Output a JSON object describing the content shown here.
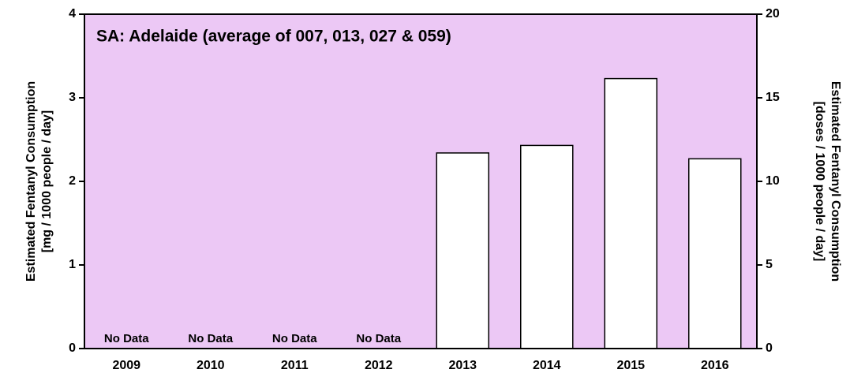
{
  "chart_data": {
    "type": "bar",
    "title": "SA: Adelaide (average of 007, 013, 027 & 059)",
    "y_label": [
      "Estimated Fentanyl Consumption",
      "[mg / 1000 people / day]"
    ],
    "y2_label": [
      "Estimated Fentanyl Consumption",
      "[doses / 1000 people / day]"
    ],
    "categories": [
      "2009",
      "2010",
      "2011",
      "2012",
      "2013",
      "2014",
      "2015",
      "2016"
    ],
    "values": [
      null,
      null,
      null,
      null,
      2.34,
      2.43,
      3.23,
      2.27
    ],
    "value_labels": [
      "No Data",
      "No Data",
      "No Data",
      "No Data",
      null,
      null,
      null,
      null
    ],
    "color": "#ffffff",
    "background": "#ecc8f5",
    "ylim": [
      0,
      4
    ],
    "yticks": [
      0,
      1,
      2,
      3,
      4
    ],
    "y2lim": [
      0,
      20
    ],
    "y2ticks": [
      0,
      5,
      10,
      15,
      20
    ]
  }
}
